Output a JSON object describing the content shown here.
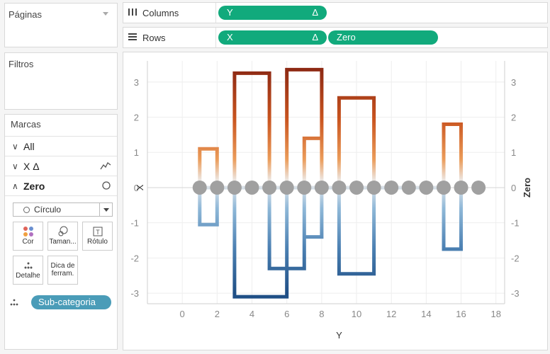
{
  "left_panel": {
    "paginas_title": "Páginas",
    "filtros_title": "Filtros",
    "marcas": {
      "title": "Marcas",
      "rows": [
        {
          "arrow": "∨",
          "label": "All"
        },
        {
          "arrow": "∨",
          "label": "X  Δ"
        },
        {
          "arrow": "∧",
          "label": "Zero"
        }
      ],
      "mark_type": "Círculo",
      "buttons": [
        {
          "label": "Cor",
          "icon": "color-dots-icon"
        },
        {
          "label": "Taman...",
          "icon": "size-icon"
        },
        {
          "label": "Rótulo",
          "icon": "label-icon"
        },
        {
          "label": "Detalhe",
          "icon": "detail-icon"
        },
        {
          "label": "Dica de ferram.",
          "icon": "tooltip-icon"
        }
      ],
      "detail_pill": "Sub-categoria"
    }
  },
  "shelves": {
    "columns": {
      "label": "Columns",
      "icon": "columns-icon",
      "pills": [
        {
          "text": "Y",
          "delta": "Δ"
        }
      ]
    },
    "rows": {
      "label": "Rows",
      "icon": "rows-icon",
      "pills": [
        {
          "text": "X",
          "delta": "Δ"
        },
        {
          "text": "Zero",
          "delta": ""
        }
      ]
    }
  },
  "colors": {
    "pill_green": "#11aa7c",
    "detail_pill": "#4a9cb8",
    "orange": "#e8812f",
    "blue": "#4a7fb0",
    "circle": "#a0a0a0"
  },
  "chart_data": {
    "type": "line",
    "xlabel": "Y",
    "ylabel": "X",
    "ylabel_right": "Zero",
    "xlim": [
      -2,
      18.5
    ],
    "ylim": [
      -3.3,
      3.6
    ],
    "xticks": [
      0,
      2,
      4,
      6,
      8,
      10,
      12,
      14,
      16,
      18
    ],
    "yticks": [
      -3,
      -2,
      -1,
      0,
      1,
      2,
      3
    ],
    "grid": true,
    "path_points": [
      [
        1,
        0
      ],
      [
        1,
        1.1
      ],
      [
        2,
        1.1
      ],
      [
        2,
        0
      ],
      [
        2,
        -1.05
      ],
      [
        1,
        -1.05
      ],
      [
        1,
        0
      ],
      [
        3,
        0
      ],
      [
        3,
        3.25
      ],
      [
        5,
        3.25
      ],
      [
        5,
        0
      ],
      [
        5,
        -2.3
      ],
      [
        7,
        -2.3
      ],
      [
        7,
        0
      ],
      [
        7,
        1.4
      ],
      [
        8,
        1.4
      ],
      [
        8,
        0
      ],
      [
        8,
        -1.4
      ],
      [
        7,
        -1.4
      ],
      [
        7,
        0
      ],
      [
        6,
        0
      ],
      [
        6,
        3.35
      ],
      [
        8,
        3.35
      ],
      [
        8,
        0
      ],
      [
        6,
        0
      ],
      [
        6,
        -3.1
      ],
      [
        3,
        -3.1
      ],
      [
        3,
        0
      ],
      [
        9,
        0
      ],
      [
        9,
        2.55
      ],
      [
        11,
        2.55
      ],
      [
        11,
        0
      ],
      [
        11,
        -2.45
      ],
      [
        9,
        -2.45
      ],
      [
        9,
        0
      ],
      [
        15,
        0
      ],
      [
        15,
        1.8
      ],
      [
        16,
        1.8
      ],
      [
        16,
        0
      ],
      [
        16,
        -1.75
      ],
      [
        15,
        -1.75
      ],
      [
        15,
        0
      ]
    ],
    "zero_circles_x": [
      1,
      2,
      3,
      4,
      5,
      6,
      7,
      8,
      9,
      10,
      11,
      12,
      13,
      14,
      15,
      16,
      17
    ]
  }
}
